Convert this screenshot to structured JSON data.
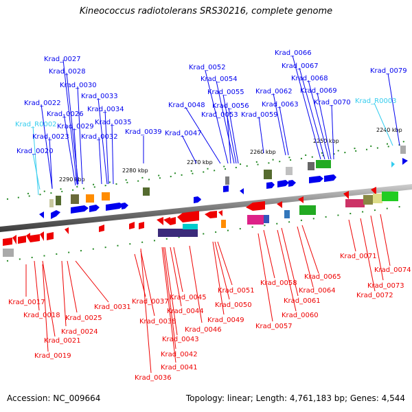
{
  "title": "Kineococcus radiotolerans SRS30216, complete genome",
  "footer": {
    "accession": "Accession: NC_009664",
    "summary": "Topology: linear; Length: 4,761,183 bp; Genes: 4,544"
  },
  "colors": {
    "forward_gene": "#0000ee",
    "reverse_gene": "#ee0000",
    "rna_gene": "#33ccee",
    "backbone": "#888888",
    "tick_mark": "#228822"
  },
  "scale_ticks": [
    "2290 kbp",
    "2280 kbp",
    "2270 kbp",
    "2260 kbp",
    "2250 kbp",
    "2240 kbp"
  ],
  "forward_labels": [
    "Krad_0027",
    "Krad_0028",
    "Krad_0030",
    "Krad_0033",
    "Krad_0022",
    "Krad_0026",
    "Krad_0034",
    "Krad_R0002",
    "Krad_0029",
    "Krad_0035",
    "Krad_0039",
    "Krad_0023",
    "Krad_0032",
    "Krad_0020",
    "Krad_0052",
    "Krad_0054",
    "Krad_0055",
    "Krad_0056",
    "Krad_0048",
    "Krad_0053",
    "Krad_0047",
    "Krad_0066",
    "Krad_0067",
    "Krad_0068",
    "Krad_0062",
    "Krad_0069",
    "Krad_0063",
    "Krad_0070",
    "Krad_0059",
    "Krad_0079",
    "Krad_R0003"
  ],
  "reverse_labels": [
    "Krad_0017",
    "Krad_0018",
    "Krad_0025",
    "Krad_0024",
    "Krad_0021",
    "Krad_0019",
    "Krad_0031",
    "Krad_0037",
    "Krad_0038",
    "Krad_0045",
    "Krad_0044",
    "Krad_0043",
    "Krad_0042",
    "Krad_0041",
    "Krad_0036",
    "Krad_0046",
    "Krad_0051",
    "Krad_0050",
    "Krad_0049",
    "Krad_0058",
    "Krad_0057",
    "Krad_0064",
    "Krad_0065",
    "Krad_0061",
    "Krad_0060",
    "Krad_0071",
    "Krad_0074",
    "Krad_0073",
    "Krad_0072"
  ]
}
